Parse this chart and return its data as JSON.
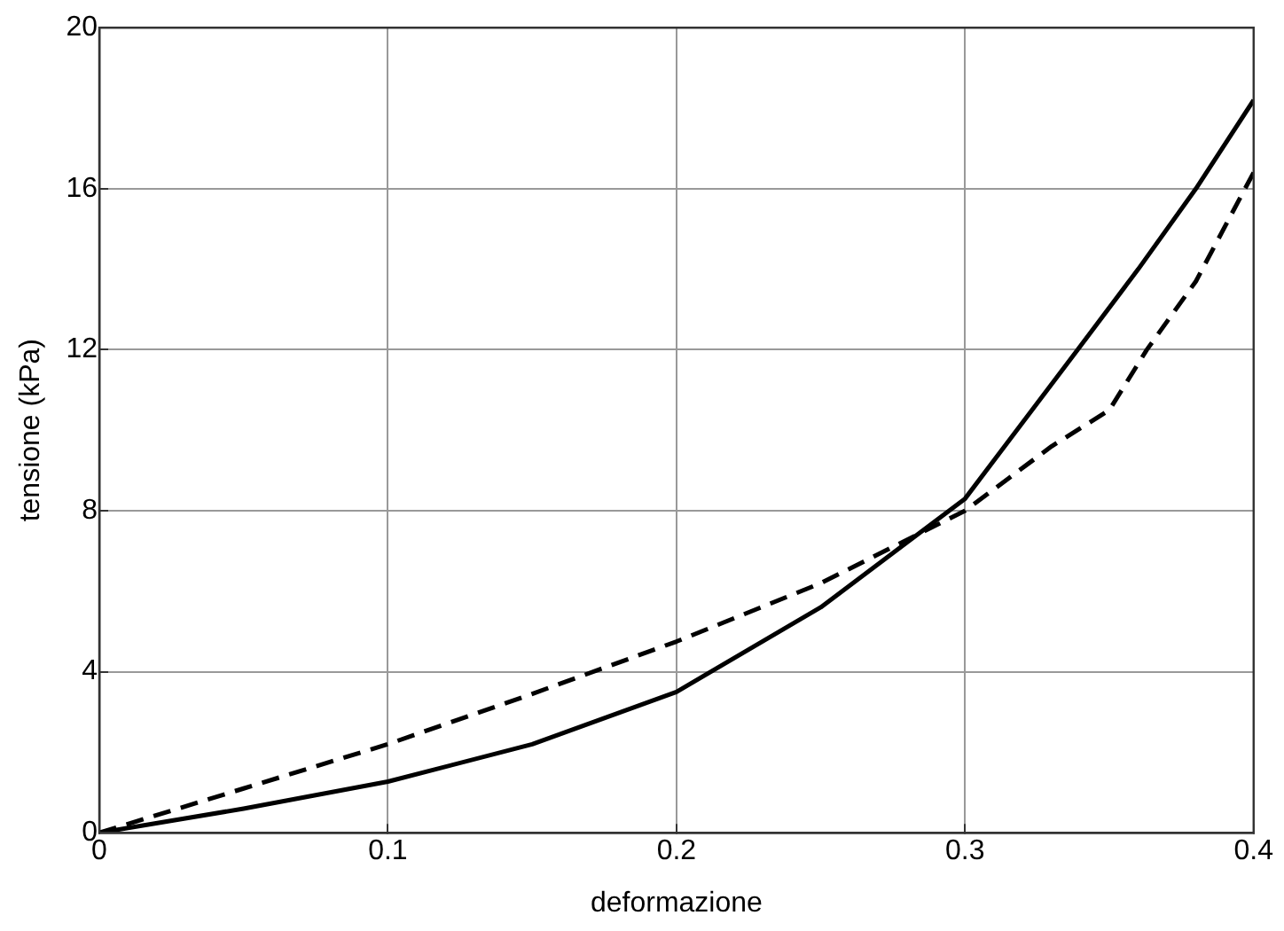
{
  "chart_data": {
    "type": "line",
    "xlabel": "deformazione",
    "ylabel": "tensione (kPa)",
    "xlim": [
      0,
      0.4
    ],
    "xticks": [
      0,
      0.1,
      0.2,
      0.3,
      0.4
    ],
    "ylim": [
      0,
      20
    ],
    "yticks": [
      0,
      4,
      8,
      12,
      16,
      20
    ],
    "grid": true,
    "legend": false,
    "marker": "none",
    "series": [
      {
        "color": "#000000",
        "line_style": "solid",
        "x": [
          0,
          0.05,
          0.1,
          0.15,
          0.2,
          0.25,
          0.3,
          0.339,
          0.36,
          0.38,
          0.4
        ],
        "values": [
          0,
          0.6,
          1.27,
          2.2,
          3.5,
          5.6,
          8.3,
          12,
          14,
          16,
          18.2
        ]
      },
      {
        "color": "#000000",
        "line_style": "dashed",
        "x": [
          0,
          0.05,
          0.1,
          0.15,
          0.2,
          0.25,
          0.3,
          0.33,
          0.35,
          0.363,
          0.38,
          0.397,
          0.4
        ],
        "values": [
          0,
          1.1,
          2.2,
          3.45,
          4.75,
          6.2,
          8.0,
          9.6,
          10.5,
          12,
          13.7,
          16,
          16.4
        ]
      }
    ]
  }
}
